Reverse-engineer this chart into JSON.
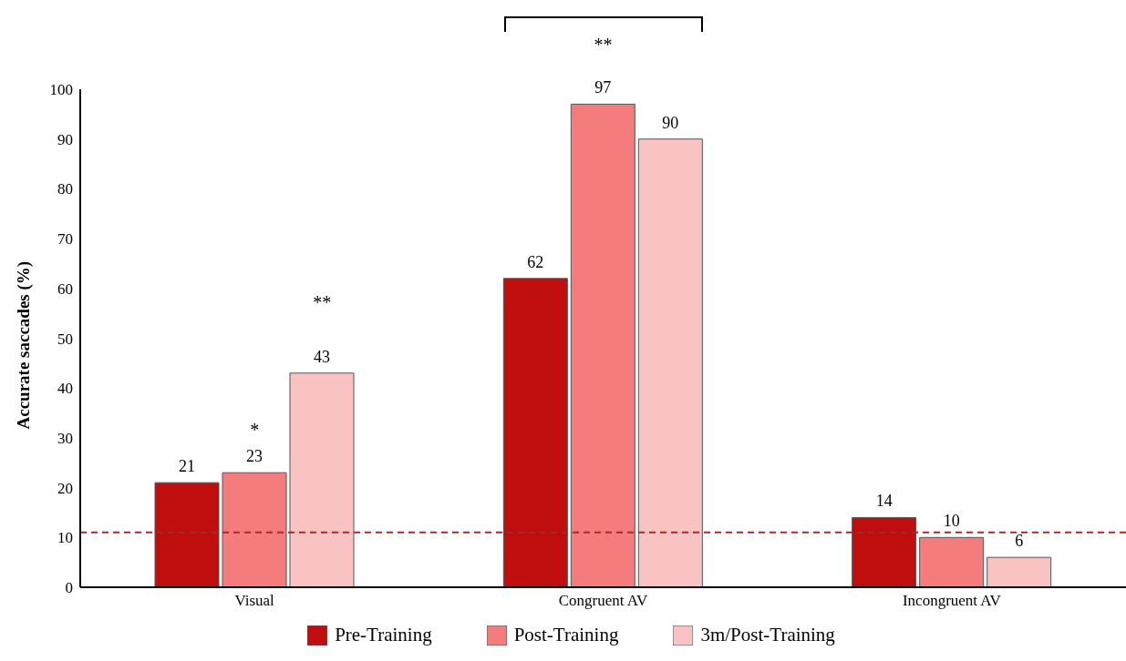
{
  "chart_data": {
    "type": "bar",
    "ylabel": "Accurate saccades (%)",
    "categories": [
      "Visual",
      "Congruent AV",
      "Incongruent AV"
    ],
    "series": [
      {
        "name": "Pre-Training",
        "color": "#c00d0d",
        "values": [
          21,
          62,
          14
        ]
      },
      {
        "name": "Post-Training",
        "color": "#f47c7c",
        "values": [
          23,
          97,
          10
        ]
      },
      {
        "name": "3m/Post-Training",
        "color": "#fac3c3",
        "values": [
          43,
          90,
          6
        ]
      }
    ],
    "ylim": [
      0,
      100
    ],
    "yticks": [
      0,
      10,
      20,
      30,
      40,
      50,
      60,
      70,
      80,
      90,
      100
    ],
    "grid": false,
    "legend": "bottom",
    "data_labels": true,
    "ref_lines": [
      {
        "axis": "y",
        "value": 11,
        "color": "#a52a2a",
        "line_style": "dashed"
      }
    ],
    "annotations": [
      {
        "text": "*",
        "x": "Visual",
        "y": 23
      },
      "**",
      "**"
    ]
  }
}
